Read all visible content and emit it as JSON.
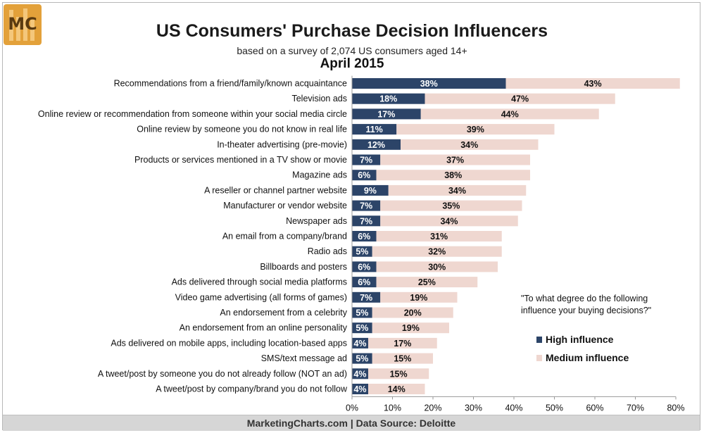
{
  "header": {
    "logo_text": "MC",
    "title": "US Consumers' Purchase Decision Influencers",
    "subtitle": "based on a survey of 2,074 US consumers aged 14+",
    "date": "April 2015"
  },
  "note": "\"To what degree do the following influence your buying decisions?\"",
  "footer": "MarketingCharts.com | Data Source: Deloitte",
  "colors": {
    "high": "#2c4468",
    "medium": "#efd7d0"
  },
  "chart_data": {
    "type": "bar",
    "orientation": "horizontal",
    "stacked": true,
    "categories": [
      "Recommendations from a friend/family/known acquaintance",
      "Television ads",
      "Online review or recommendation from someone within your social media circle",
      "Online review by someone you do not know in real life",
      "In-theater advertising (pre-movie)",
      "Products or services mentioned in a TV show or movie",
      "Magazine ads",
      "A reseller or channel partner website",
      "Manufacturer or vendor website",
      "Newspaper ads",
      "An email from a company/brand",
      "Radio ads",
      "Billboards and posters",
      "Ads delivered through social media platforms",
      "Video game advertising (all forms of games)",
      "An endorsement from a celebrity",
      "An endorsement from an online personality",
      "Ads delivered on mobile apps, including location-based apps",
      "SMS/text message ad",
      "A tweet/post by someone you do not already follow (NOT an ad)",
      "A tweet/post by company/brand you do not follow"
    ],
    "series": [
      {
        "name": "High influence",
        "values": [
          38,
          18,
          17,
          11,
          12,
          7,
          6,
          9,
          7,
          7,
          6,
          5,
          6,
          6,
          7,
          5,
          5,
          4,
          5,
          4,
          4
        ]
      },
      {
        "name": "Medium influence",
        "values": [
          43,
          47,
          44,
          39,
          34,
          37,
          38,
          34,
          35,
          34,
          31,
          32,
          30,
          25,
          19,
          20,
          19,
          17,
          15,
          15,
          14
        ]
      }
    ],
    "xlim": [
      0,
      80
    ],
    "xticks": [
      "0%",
      "10%",
      "20%",
      "30%",
      "40%",
      "50%",
      "60%",
      "70%",
      "80%"
    ],
    "value_suffix": "%",
    "legend_position": "bottom-right"
  }
}
